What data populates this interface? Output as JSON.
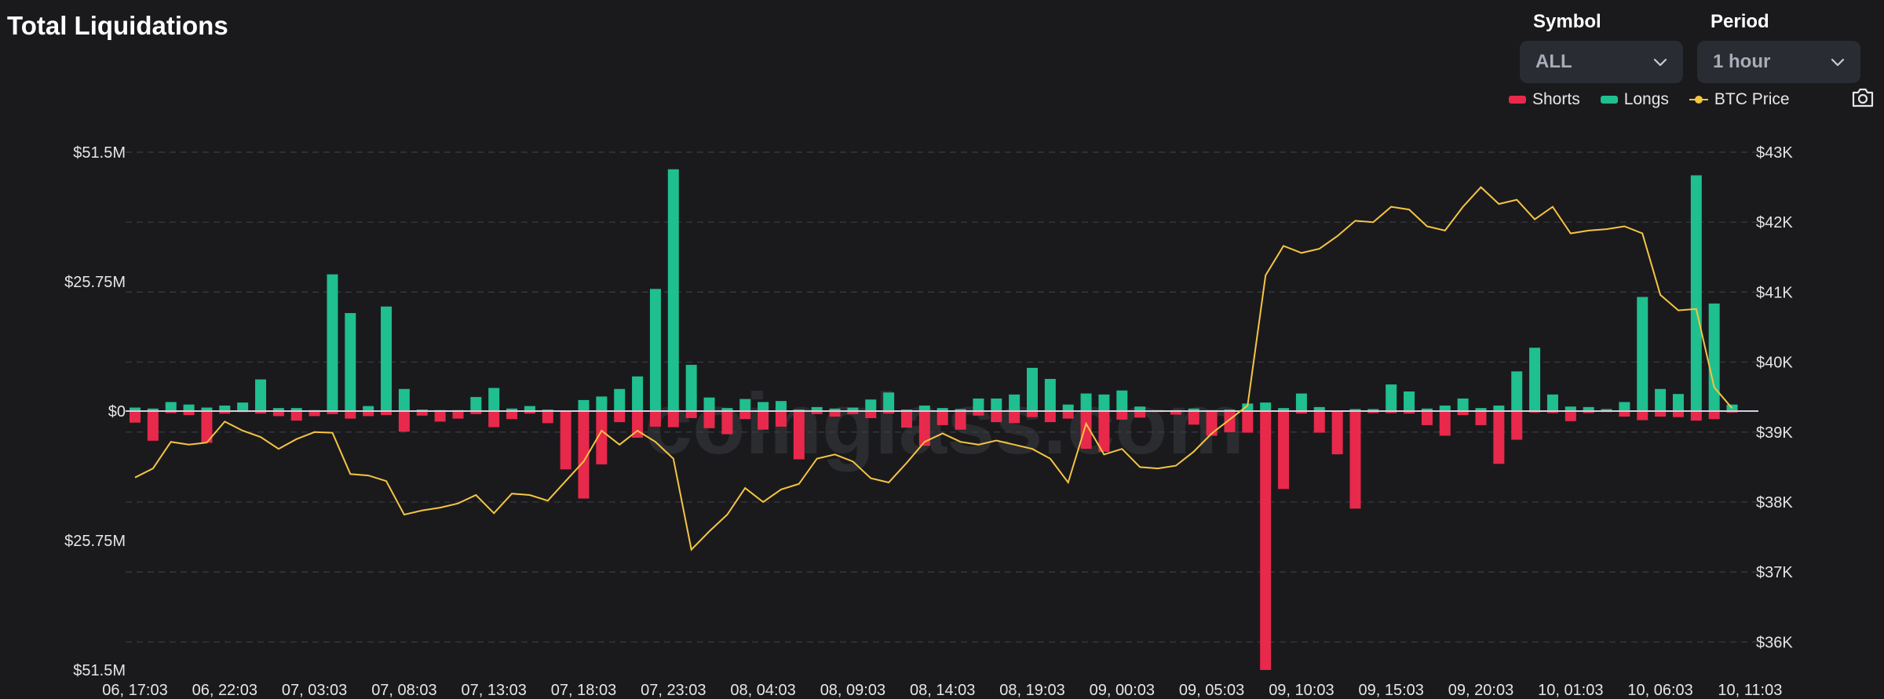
{
  "header": {
    "title": "Total Liquidations",
    "symbol_label": "Symbol",
    "symbol_value": "ALL",
    "period_label": "Period",
    "period_value": "1 hour"
  },
  "legend": {
    "shorts": "Shorts",
    "longs": "Longs",
    "btc_price": "BTC Price"
  },
  "watermark": "coinglass.com",
  "icons": {
    "camera": "camera-icon",
    "chevron": "chevron-down-icon"
  },
  "colors": {
    "shorts": "#e8294b",
    "longs": "#1fbf8f",
    "btc_price": "#f5c542"
  },
  "chart_data": {
    "type": "bar",
    "legend_position": "top-right",
    "grid": true,
    "y_left": {
      "range": [
        -51.5,
        51.5
      ],
      "unit": "$M",
      "ticks": [
        51.5,
        25.75,
        0,
        -25.75,
        -51.5
      ],
      "tick_labels": [
        "$51.5M",
        "$25.75M",
        "$0",
        "$25.75M",
        "$51.5M"
      ]
    },
    "y_right": {
      "range": [
        35.6,
        43
      ],
      "unit": "$K",
      "ticks": [
        43,
        42,
        41,
        40,
        39,
        38,
        37,
        36
      ],
      "tick_labels": [
        "$43K",
        "$42K",
        "$41K",
        "$40K",
        "$39K",
        "$38K",
        "$37K",
        "$36K"
      ]
    },
    "x_tick_labels": [
      "06, 17:03",
      "06, 22:03",
      "07, 03:03",
      "07, 08:03",
      "07, 13:03",
      "07, 18:03",
      "07, 23:03",
      "08, 04:03",
      "08, 09:03",
      "08, 14:03",
      "08, 19:03",
      "09, 00:03",
      "09, 05:03",
      "09, 10:03",
      "09, 15:03",
      "09, 20:03",
      "10, 01:03",
      "10, 06:03",
      "10, 11:03"
    ],
    "x_tick_every": 5,
    "series": [
      {
        "name": "Longs",
        "axis": "left",
        "values": [
          0.7,
          0.5,
          1.8,
          1.3,
          0.7,
          1.1,
          1.7,
          6.3,
          0.6,
          0.6,
          0.2,
          27.2,
          19.5,
          1,
          20.8,
          4.4,
          0.3,
          0.2,
          0.2,
          2.8,
          4.6,
          0.5,
          1,
          0.3,
          0,
          2.2,
          2.9,
          4.4,
          6.9,
          24.3,
          48.1,
          9.2,
          2.7,
          0.6,
          2.4,
          1.8,
          2,
          0.3,
          0.8,
          0.5,
          0.7,
          2.3,
          3.7,
          0.3,
          1.1,
          0.6,
          0.4,
          2.5,
          2.5,
          3.3,
          8.6,
          6.4,
          1.3,
          3.5,
          3.3,
          4.1,
          0.9,
          0.2,
          0.2,
          0.5,
          0.2,
          0.3,
          1.5,
          1.7,
          0.6,
          3.5,
          0.8,
          0.1,
          0.4,
          0.4,
          5.3,
          3.9,
          0.5,
          1.1,
          2.5,
          0.6,
          1.1,
          7.9,
          12.6,
          3.3,
          0.9,
          0.8,
          0.4,
          1.8,
          22.7,
          4.4,
          3.4,
          46.9,
          21.4,
          1.3
        ],
        "color": "#1fbf8f"
      },
      {
        "name": "Shorts",
        "axis": "left",
        "values": [
          -2.3,
          -5.9,
          -0.4,
          -0.8,
          -6.3,
          -0.5,
          -0.2,
          -0.5,
          -1,
          -1.9,
          -1,
          -0.6,
          -1.5,
          -1,
          -0.8,
          -4.1,
          -0.9,
          -2.1,
          -1.5,
          -0.6,
          -3.2,
          -1.6,
          -0.5,
          -2.4,
          -11.6,
          -17.4,
          -10.6,
          -2.2,
          -5.3,
          -3.1,
          -3.2,
          -1.4,
          -3.4,
          -4.6,
          -1.6,
          -3.7,
          -3.1,
          -9.6,
          -0.6,
          -1.1,
          -0.6,
          -1.4,
          -0.5,
          -3.3,
          -6.9,
          -2.8,
          -3.7,
          -0.9,
          -2.2,
          -2.4,
          -1.2,
          -2.2,
          -1.5,
          -7.5,
          -8.1,
          -1.7,
          -1.3,
          -0.2,
          -0.7,
          -2.7,
          -4.9,
          -4.2,
          -4.3,
          -51.5,
          -15.5,
          -0.5,
          -4.3,
          -8.6,
          -19.4,
          -0.4,
          -0.4,
          -0.5,
          -2.8,
          -4.9,
          -0.8,
          -2.8,
          -10.5,
          -5.7,
          -0.3,
          -0.4,
          -2,
          -0.4,
          -0.2,
          -1.1,
          -1.8,
          -1.1,
          -1.2,
          -1.9,
          -1.6,
          -0.3
        ],
        "color": "#e8294b"
      },
      {
        "name": "BTC Price",
        "axis": "right",
        "type": "line",
        "values": [
          38.35,
          38.48,
          38.86,
          38.82,
          38.85,
          39.15,
          39.02,
          38.93,
          38.76,
          38.9,
          39,
          38.99,
          38.4,
          38.38,
          38.3,
          37.82,
          37.88,
          37.92,
          37.98,
          38.1,
          37.84,
          38.12,
          38.1,
          38.02,
          38.3,
          38.58,
          39.02,
          38.82,
          39.02,
          38.86,
          38.62,
          37.32,
          37.58,
          37.82,
          38.2,
          38,
          38.18,
          38.26,
          38.62,
          38.68,
          38.58,
          38.34,
          38.28,
          38.56,
          38.86,
          38.98,
          38.86,
          38.82,
          38.88,
          38.82,
          38.76,
          38.62,
          38.28,
          39.12,
          38.68,
          38.76,
          38.5,
          38.48,
          38.52,
          38.72,
          38.98,
          39.18,
          39.38,
          41.24,
          41.66,
          41.56,
          41.62,
          41.8,
          42.02,
          42,
          42.22,
          42.18,
          41.94,
          41.88,
          42.22,
          42.5,
          42.26,
          42.32,
          42.04,
          42.22,
          41.84,
          41.88,
          41.9,
          41.94,
          41.84,
          40.96,
          40.74,
          40.76,
          39.64,
          39.34
        ]
      }
    ]
  }
}
